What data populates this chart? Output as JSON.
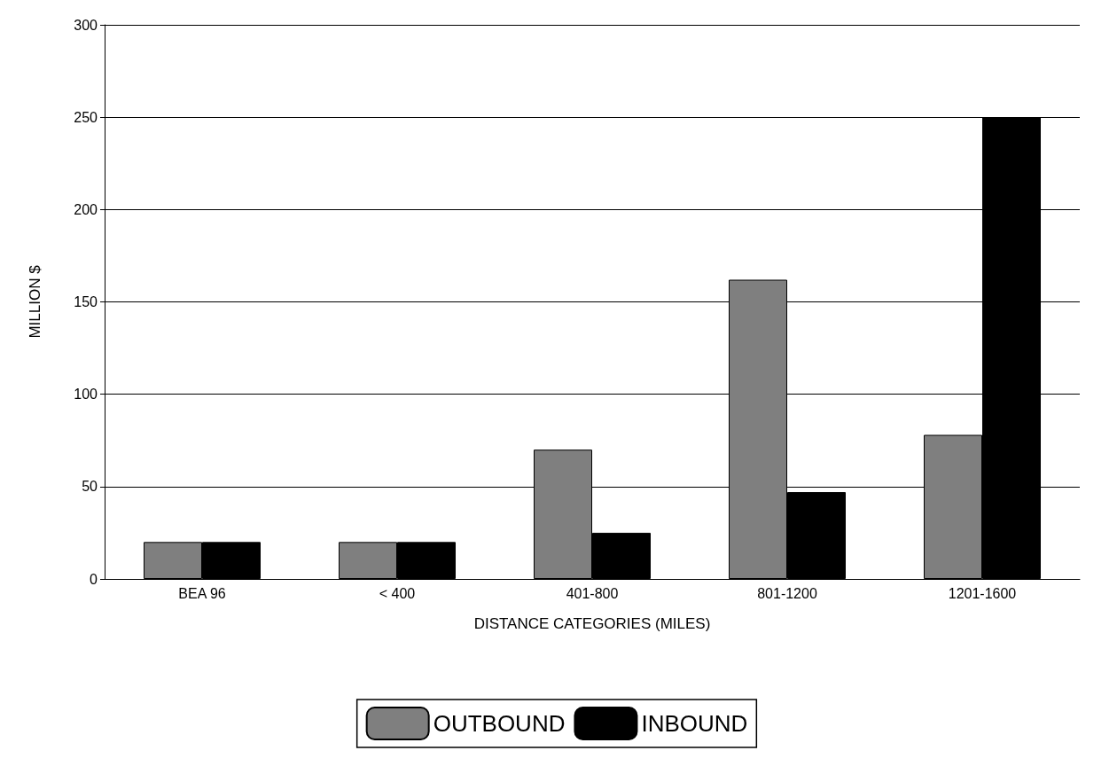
{
  "chart_data": {
    "type": "bar",
    "xlabel": "DISTANCE CATEGORIES (MILES)",
    "ylabel": "MILLION $",
    "categories": [
      "BEA 96",
      "< 400",
      "401-800",
      "801-1200",
      "1201-1600"
    ],
    "series": [
      {
        "name": "OUTBOUND",
        "color": "#7f7f7f",
        "values": [
          20,
          20,
          70,
          162,
          78
        ]
      },
      {
        "name": "INBOUND",
        "color": "#000000",
        "values": [
          20,
          20,
          25,
          47,
          250
        ]
      }
    ],
    "ylim": [
      0,
      300
    ],
    "yticks": [
      0,
      50,
      100,
      150,
      200,
      250,
      300
    ],
    "grid": "y",
    "legend": "bottom"
  }
}
